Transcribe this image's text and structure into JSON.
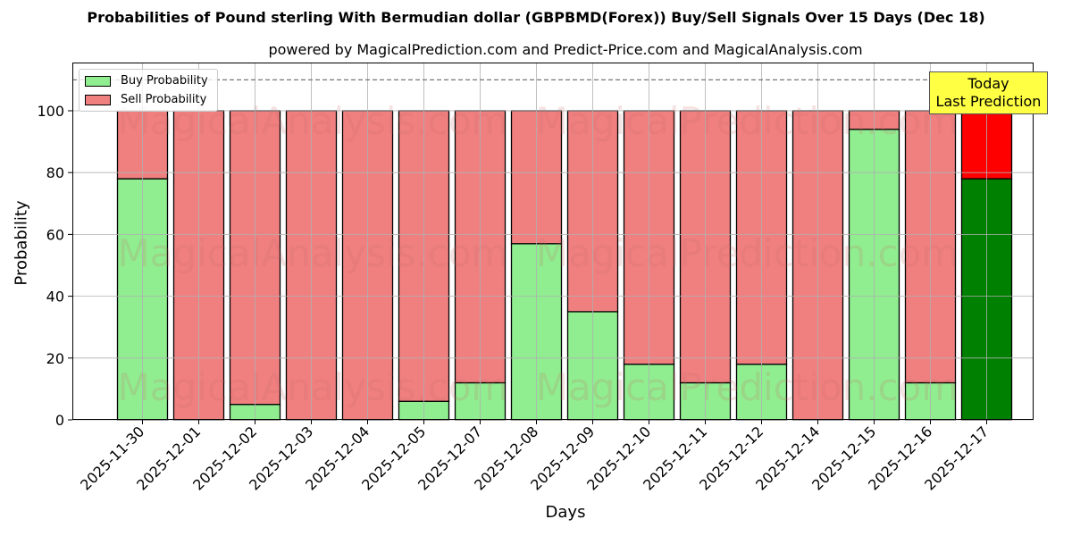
{
  "title": "Probabilities of Pound sterling With Bermudian dollar (GBPBMD(Forex)) Buy/Sell Signals Over 15 Days (Dec 18)",
  "subtitle": "powered by MagicalPrediction.com and Predict-Price.com and MagicalAnalysis.com",
  "legend": {
    "buy": "Buy Probability",
    "sell": "Sell Probability"
  },
  "annotation": {
    "line1": "Today",
    "line2": "Last Prediction"
  },
  "watermarks": [
    "MagicalAnalysis.com",
    "MagicalPrediction.com"
  ],
  "colors": {
    "buy": "#90ee90",
    "sell": "#f08080",
    "today_buy": "#008000",
    "today_sell": "#ff0000",
    "annotation_bg": "#ffff44"
  },
  "chart_data": {
    "type": "bar",
    "stacked": true,
    "title": "Probabilities of Pound sterling With Bermudian dollar (GBPBMD(Forex)) Buy/Sell Signals Over 15 Days (Dec 18)",
    "subtitle": "powered by MagicalPrediction.com and Predict-Price.com and MagicalAnalysis.com",
    "xlabel": "Days",
    "ylabel": "Probability",
    "ylim": [
      0,
      115
    ],
    "yticks": [
      0,
      20,
      40,
      60,
      80,
      100
    ],
    "grid": true,
    "legend_position": "upper left",
    "reference_line": {
      "y": 110,
      "style": "dashed"
    },
    "categories": [
      "2025-11-30",
      "2025-12-01",
      "2025-12-02",
      "2025-12-03",
      "2025-12-04",
      "2025-12-05",
      "2025-12-07",
      "2025-12-08",
      "2025-12-09",
      "2025-12-10",
      "2025-12-11",
      "2025-12-12",
      "2025-12-14",
      "2025-12-15",
      "2025-12-16",
      "2025-12-17"
    ],
    "series": [
      {
        "name": "Buy Probability",
        "values": [
          78,
          0,
          5,
          0,
          0,
          6,
          12,
          57,
          35,
          18,
          12,
          18,
          0,
          94,
          12,
          78
        ]
      },
      {
        "name": "Sell Probability",
        "values": [
          22,
          100,
          95,
          100,
          100,
          94,
          88,
          43,
          65,
          82,
          88,
          82,
          100,
          6,
          88,
          22
        ]
      }
    ],
    "annotations": [
      {
        "text": "Today\nLast Prediction",
        "x": "2025-12-17"
      }
    ]
  }
}
